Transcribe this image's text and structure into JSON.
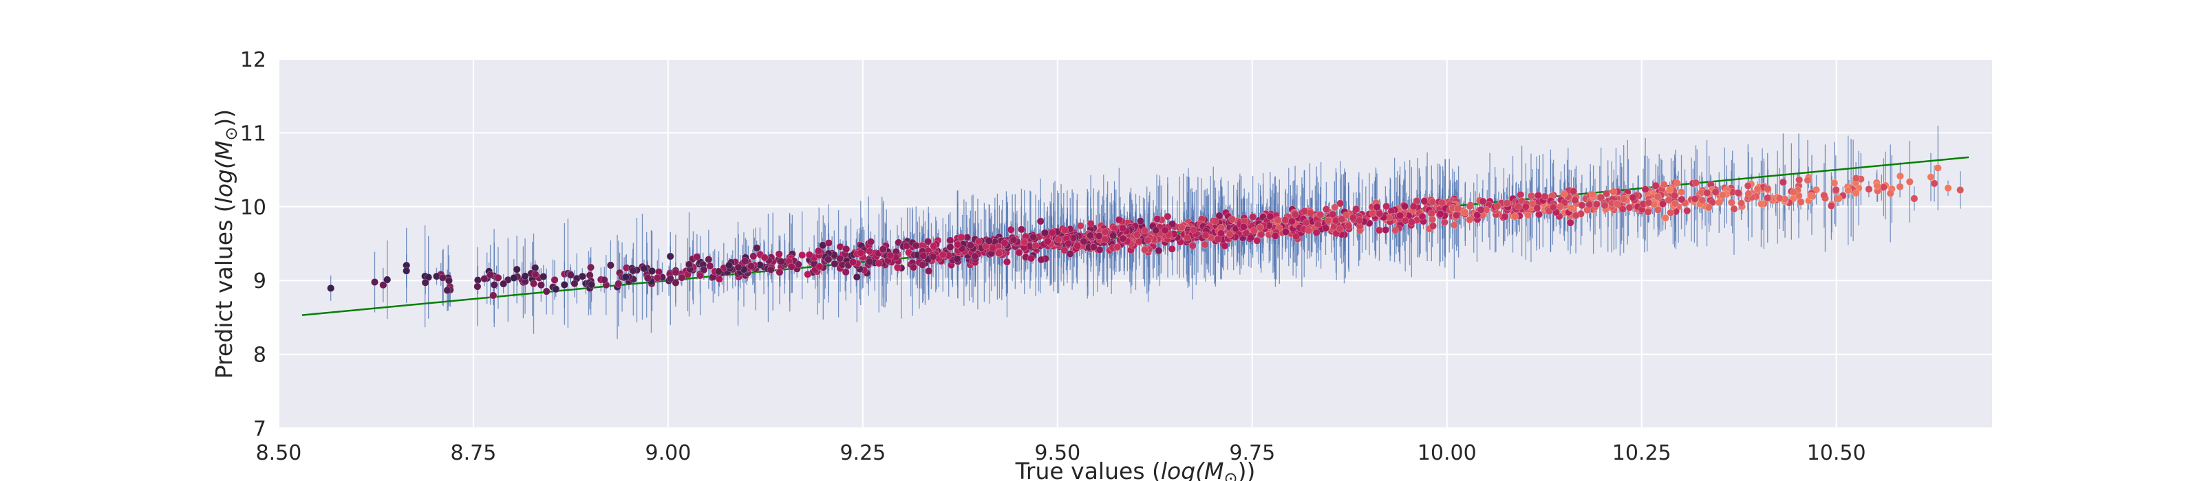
{
  "chart_data": {
    "type": "scatter",
    "title": "",
    "xlabel": "True values (log(M⊙))",
    "ylabel": "Predict values (log(M⊙))",
    "xlabel_parts": {
      "pre": "True values (",
      "math": "log(M",
      "sub": "⊙",
      "post": "))"
    },
    "ylabel_parts": {
      "pre": "Predict values (",
      "math": "log(M",
      "sub": "⊙",
      "post": "))"
    },
    "xlim": [
      8.5,
      10.7
    ],
    "ylim": [
      7,
      12
    ],
    "x_ticks": [
      8.5,
      8.75,
      9.0,
      9.25,
      9.5,
      9.75,
      10.0,
      10.25,
      10.5
    ],
    "x_tick_labels": [
      "8.50",
      "8.75",
      "9.00",
      "9.25",
      "9.50",
      "9.75",
      "10.00",
      "10.25",
      "10.50"
    ],
    "y_ticks": [
      7,
      8,
      9,
      10,
      11,
      12
    ],
    "y_tick_labels": [
      "7",
      "8",
      "9",
      "10",
      "11",
      "12"
    ],
    "grid": true,
    "legend": "none",
    "colors": {
      "background": "#eaeaf2",
      "grid": "#ffffff",
      "errorbar": "#4c72b0",
      "reference_line": "#008000",
      "point_low": "#3b1f4e",
      "point_mid": "#b3195b",
      "point_high": "#f07860"
    },
    "reference_line": {
      "x": [
        8.53,
        10.67
      ],
      "y": [
        8.53,
        10.67
      ]
    },
    "point_color_encoding": "true value (dark purple → magenta → salmon)",
    "n_points": 1600,
    "noise_sd": 0.22,
    "errorbar_sd_range": [
      0.1,
      0.75
    ],
    "series": [
      {
        "x": [
          8.53,
          8.54,
          8.56,
          8.58,
          8.61,
          8.63,
          8.65,
          8.7,
          8.74,
          8.8,
          8.85,
          8.9,
          8.95,
          9.0,
          9.05,
          9.1,
          9.15,
          9.2,
          9.25,
          9.3,
          9.35,
          9.4,
          9.45,
          9.5,
          9.55,
          9.6,
          9.65,
          9.7,
          9.75,
          9.8,
          9.85,
          9.9,
          9.95,
          10.0,
          10.05,
          10.1,
          10.15,
          10.2,
          10.25,
          10.3,
          10.35,
          10.4,
          10.45,
          10.5,
          10.55,
          10.6,
          10.62,
          10.67
        ],
        "y": [
          8.92,
          8.9,
          8.93,
          8.95,
          8.96,
          8.98,
          9.0,
          9.05,
          9.0,
          9.02,
          9.05,
          9.05,
          9.08,
          9.1,
          9.15,
          9.2,
          9.25,
          9.28,
          9.3,
          9.35,
          9.4,
          9.45,
          9.5,
          9.55,
          9.58,
          9.62,
          9.65,
          9.7,
          9.72,
          9.76,
          9.8,
          9.85,
          9.88,
          9.95,
          9.98,
          10.0,
          10.05,
          10.08,
          10.1,
          10.12,
          10.15,
          10.18,
          10.2,
          10.22,
          10.25,
          10.3,
          10.35,
          10.38
        ]
      }
    ]
  }
}
